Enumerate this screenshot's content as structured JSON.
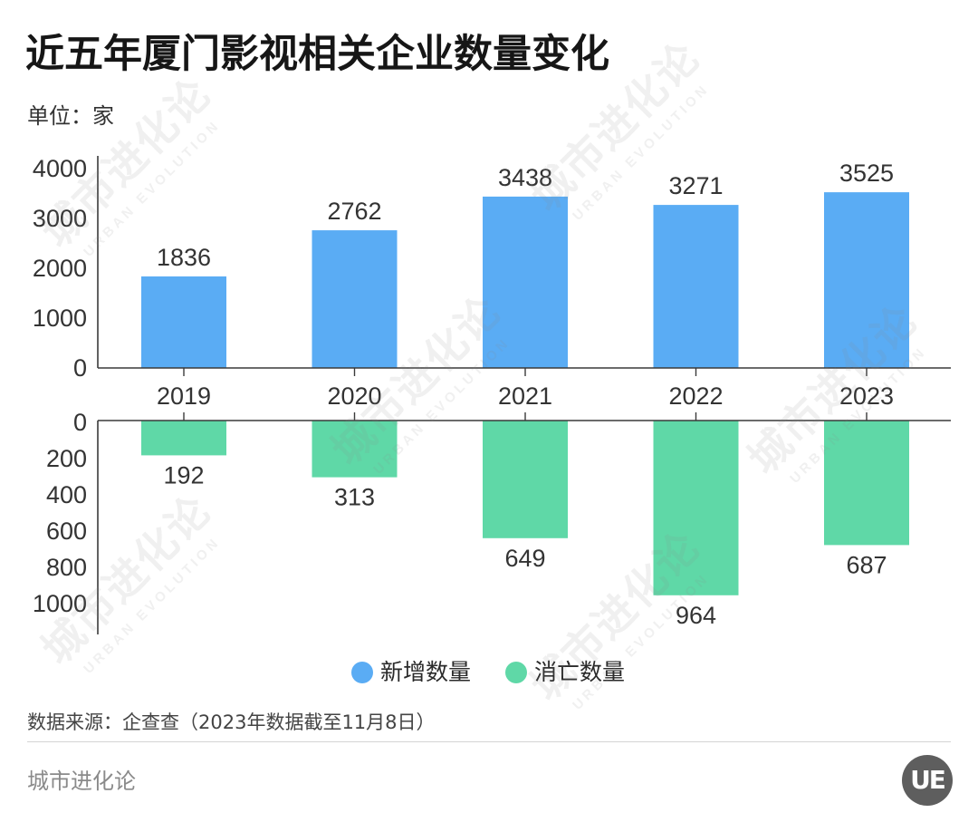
{
  "chart_data": {
    "type": "bar",
    "title": "近五年厦门影视相关企业数量变化",
    "unit": "单位：家",
    "categories": [
      "2019",
      "2020",
      "2021",
      "2022",
      "2023"
    ],
    "series": [
      {
        "name": "新增数量",
        "values": [
          1836,
          2762,
          3438,
          3271,
          3525
        ],
        "color": "#5aacf4"
      },
      {
        "name": "消亡数量",
        "values": [
          192,
          313,
          649,
          964,
          687
        ],
        "color": "#5fd8a7"
      }
    ],
    "upper_axis": {
      "ylim": [
        0,
        4000
      ],
      "ticks": [
        0,
        1000,
        2000,
        3000,
        4000
      ]
    },
    "lower_axis": {
      "ylim": [
        0,
        1000
      ],
      "ticks": [
        0,
        200,
        400,
        600,
        800,
        1000
      ],
      "inverted": true
    },
    "source": "数据来源：企查查（2023年数据截至11月8日）"
  },
  "footer": {
    "brand": "城市进化论"
  },
  "logo": {
    "text": "UE"
  },
  "watermark": {
    "cn": "城市进化论",
    "en": "URBAN EVOLUTION"
  }
}
